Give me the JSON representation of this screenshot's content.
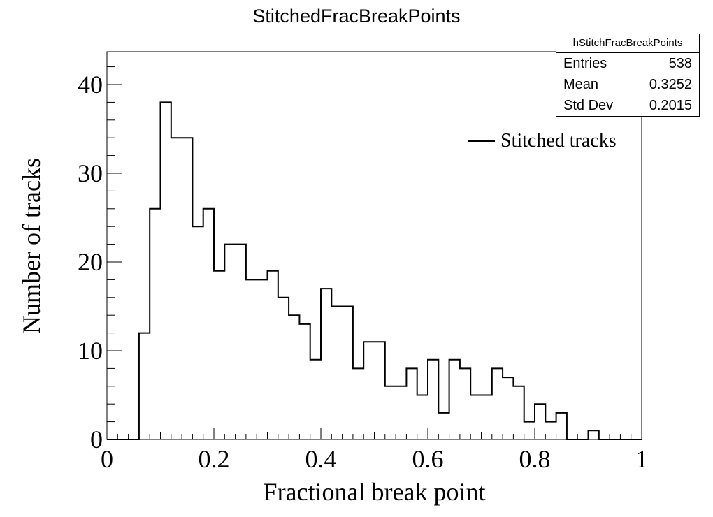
{
  "title": "StitchedFracBreakPoints",
  "stats": {
    "name": "hStitchFracBreakPoints",
    "rows": [
      {
        "label": "Entries",
        "value": "538"
      },
      {
        "label": "Mean",
        "value": "0.3252"
      },
      {
        "label": "Std Dev",
        "value": "0.2015"
      }
    ]
  },
  "legend": {
    "label": "Stitched tracks"
  },
  "chart_data": {
    "type": "bar",
    "title": "StitchedFracBreakPoints",
    "xlabel": "Fractional break point",
    "ylabel": "Number of tracks",
    "xlim": [
      0,
      1
    ],
    "ylim": [
      0,
      43.7
    ],
    "bin_edges": [
      0,
      0.02,
      0.04,
      0.06,
      0.08,
      0.1,
      0.12,
      0.14,
      0.16,
      0.18,
      0.2,
      0.22,
      0.24,
      0.26,
      0.28,
      0.3,
      0.32,
      0.34,
      0.36,
      0.38,
      0.4,
      0.42,
      0.44,
      0.46,
      0.48,
      0.5,
      0.52,
      0.54,
      0.56,
      0.58,
      0.6,
      0.62,
      0.64,
      0.66,
      0.68,
      0.7,
      0.72,
      0.74,
      0.76,
      0.78,
      0.8,
      0.82,
      0.84,
      0.86,
      0.88,
      0.9,
      0.92,
      0.94,
      0.96,
      0.98,
      1.0
    ],
    "values": [
      0,
      0,
      0,
      12,
      26,
      38,
      34,
      34,
      24,
      26,
      19,
      22,
      22,
      18,
      18,
      19,
      16,
      14,
      13,
      9,
      17,
      15,
      15,
      8,
      11,
      11,
      6,
      6,
      8,
      5,
      9,
      3,
      9,
      8,
      5,
      5,
      8,
      7,
      6,
      2,
      4,
      2,
      3,
      0,
      0,
      1,
      0,
      0,
      0,
      0
    ],
    "series": [
      {
        "name": "Stitched tracks"
      }
    ],
    "xticks": [
      0,
      0.2,
      0.4,
      0.6,
      0.8,
      1
    ],
    "xtick_labels": [
      "0",
      "0.2",
      "0.4",
      "0.6",
      "0.8",
      "1"
    ],
    "yticks": [
      0,
      10,
      20,
      30,
      40
    ],
    "ytick_labels": [
      "0",
      "10",
      "20",
      "30",
      "40"
    ],
    "grid": false,
    "legend_position": "top-right"
  }
}
